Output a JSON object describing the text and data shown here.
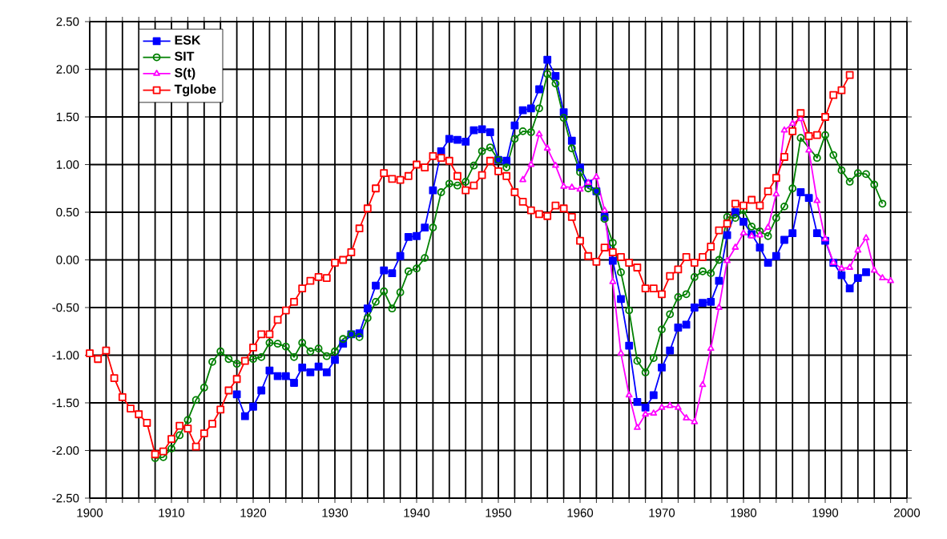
{
  "chart_data": {
    "type": "line",
    "xlim": [
      1900,
      2000
    ],
    "xticks": [
      1900,
      {
        "value": 1902,
        "label": null
      },
      {
        "value": 1904,
        "label": null
      },
      {
        "value": 1906,
        "label": null
      },
      {
        "value": 1908,
        "label": null
      },
      1910,
      {
        "value": 1912,
        "label": null
      },
      {
        "value": 1914,
        "label": null
      },
      {
        "value": 1916,
        "label": null
      },
      {
        "value": 1918,
        "label": null
      },
      1920,
      {
        "value": 1922,
        "label": null
      },
      {
        "value": 1924,
        "label": null
      },
      {
        "value": 1926,
        "label": null
      },
      {
        "value": 1928,
        "label": null
      },
      1930,
      {
        "value": 1932,
        "label": null
      },
      {
        "value": 1934,
        "label": null
      },
      {
        "value": 1936,
        "label": null
      },
      {
        "value": 1938,
        "label": null
      },
      1940,
      {
        "value": 1942,
        "label": null
      },
      {
        "value": 1944,
        "label": null
      },
      {
        "value": 1946,
        "label": null
      },
      {
        "value": 1948,
        "label": null
      },
      1950,
      {
        "value": 1952,
        "label": null
      },
      {
        "value": 1954,
        "label": null
      },
      {
        "value": 1956,
        "label": null
      },
      {
        "value": 1958,
        "label": null
      },
      1960,
      {
        "value": 1962,
        "label": null
      },
      {
        "value": 1964,
        "label": null
      },
      {
        "value": 1966,
        "label": null
      },
      {
        "value": 1968,
        "label": null
      },
      1970,
      {
        "value": 1972,
        "label": null
      },
      {
        "value": 1974,
        "label": null
      },
      {
        "value": 1976,
        "label": null
      },
      {
        "value": 1978,
        "label": null
      },
      1980,
      {
        "value": 1982,
        "label": null
      },
      {
        "value": 1984,
        "label": null
      },
      {
        "value": 1986,
        "label": null
      },
      {
        "value": 1988,
        "label": null
      },
      1990,
      {
        "value": 1992,
        "label": null
      },
      {
        "value": 1994,
        "label": null
      },
      {
        "value": 1996,
        "label": null
      },
      {
        "value": 1998,
        "label": null
      },
      2000
    ],
    "ylim": [
      -2.5,
      2.5
    ],
    "yticks": [
      {
        "value": -2.5,
        "label": "-2.50"
      },
      {
        "value": -2.0,
        "label": "-2.00"
      },
      {
        "value": -1.5,
        "label": "-1.50"
      },
      {
        "value": -1.0,
        "label": "-1.00"
      },
      {
        "value": -0.5,
        "label": "-0.50"
      },
      {
        "value": 0,
        "label": "0.00"
      },
      {
        "value": 0.5,
        "label": "0.50"
      },
      {
        "value": 1.0,
        "label": "1.00"
      },
      {
        "value": 1.5,
        "label": "1.50"
      },
      {
        "value": 2.0,
        "label": "2.00"
      },
      {
        "value": 2.5,
        "label": "2.50"
      }
    ],
    "grid": true,
    "legend": "top left",
    "line_style": "solid",
    "series": [
      {
        "name": "ESK",
        "color": "#0000ff",
        "marker": "square",
        "x": [
          1918,
          1919,
          1920,
          1921,
          1922,
          1923,
          1924,
          1925,
          1926,
          1927,
          1928,
          1929,
          1930,
          1931,
          1932,
          1933,
          1934,
          1935,
          1936,
          1937,
          1938,
          1939,
          1940,
          1941,
          1942,
          1943,
          1944,
          1945,
          1946,
          1947,
          1948,
          1949,
          1950,
          1951,
          1952,
          1953,
          1954,
          1955,
          1956,
          1957,
          1958,
          1959,
          1960,
          1961,
          1962,
          1963,
          1964,
          1965,
          1966,
          1967,
          1968,
          1969,
          1970,
          1971,
          1972,
          1973,
          1974,
          1975,
          1976,
          1977,
          1978,
          1979,
          1980,
          1981,
          1982,
          1983,
          1984,
          1985,
          1986,
          1987,
          1988,
          1989,
          1990,
          1991,
          1992,
          1993,
          1994,
          1995
        ],
        "values": [
          -1.41,
          -1.64,
          -1.54,
          -1.37,
          -1.16,
          -1.22,
          -1.22,
          -1.29,
          -1.13,
          -1.18,
          -1.12,
          -1.18,
          -1.05,
          -0.88,
          -0.78,
          -0.77,
          -0.51,
          -0.27,
          -0.11,
          -0.14,
          0.04,
          0.24,
          0.25,
          0.34,
          0.73,
          1.14,
          1.27,
          1.26,
          1.24,
          1.36,
          1.37,
          1.34,
          1.05,
          1.04,
          1.41,
          1.57,
          1.59,
          1.79,
          2.1,
          1.93,
          1.55,
          1.25,
          0.97,
          0.8,
          0.72,
          0.45,
          -0.01,
          -0.41,
          -0.9,
          -1.49,
          -1.55,
          -1.42,
          -1.13,
          -0.95,
          -0.71,
          -0.68,
          -0.5,
          -0.45,
          -0.44,
          -0.22,
          0.26,
          0.5,
          0.4,
          0.27,
          0.13,
          -0.03,
          0.04,
          0.21,
          0.28,
          0.71,
          0.65,
          0.28,
          0.2,
          -0.03,
          -0.16,
          -0.3,
          -0.19,
          -0.13
        ]
      },
      {
        "name": "SIT",
        "color": "#008000",
        "marker": "circle",
        "x": [
          1908,
          1909,
          1910,
          1911,
          1912,
          1913,
          1914,
          1915,
          1916,
          1917,
          1918,
          1919,
          1920,
          1921,
          1922,
          1923,
          1924,
          1925,
          1926,
          1927,
          1928,
          1929,
          1930,
          1931,
          1932,
          1933,
          1934,
          1935,
          1936,
          1937,
          1938,
          1939,
          1940,
          1941,
          1942,
          1943,
          1944,
          1945,
          1946,
          1947,
          1948,
          1949,
          1950,
          1951,
          1952,
          1953,
          1954,
          1955,
          1956,
          1957,
          1958,
          1959,
          1960,
          1961,
          1962,
          1963,
          1964,
          1965,
          1966,
          1967,
          1968,
          1969,
          1970,
          1971,
          1972,
          1973,
          1974,
          1975,
          1976,
          1977,
          1978,
          1979,
          1980,
          1981,
          1982,
          1983,
          1984,
          1985,
          1986,
          1987,
          1988,
          1989,
          1990,
          1991,
          1992,
          1993,
          1994,
          1995,
          1996,
          1997
        ],
        "values": [
          -2.08,
          -2.07,
          -1.98,
          -1.84,
          -1.68,
          -1.47,
          -1.34,
          -1.07,
          -0.96,
          -1.04,
          -1.09,
          null,
          -1.04,
          -1.02,
          -0.87,
          -0.88,
          -0.91,
          -1.02,
          -0.87,
          -0.96,
          -0.93,
          -1.01,
          -0.96,
          -0.83,
          -0.78,
          -0.81,
          -0.61,
          -0.44,
          -0.33,
          -0.51,
          -0.34,
          -0.12,
          -0.09,
          0.02,
          0.34,
          0.71,
          0.8,
          0.78,
          0.82,
          0.99,
          1.14,
          1.18,
          1.05,
          0.97,
          1.27,
          1.35,
          1.34,
          1.59,
          1.95,
          1.85,
          1.49,
          1.17,
          0.92,
          0.75,
          0.72,
          0.43,
          0.18,
          -0.13,
          -0.53,
          -1.06,
          -1.18,
          -1.03,
          -0.73,
          -0.57,
          -0.39,
          -0.36,
          -0.18,
          -0.12,
          -0.14,
          0.0,
          0.45,
          0.44,
          0.52,
          0.35,
          0.3,
          0.25,
          0.44,
          0.56,
          0.75,
          1.28,
          null,
          1.07,
          1.31,
          1.1,
          0.94,
          0.82,
          0.91,
          0.9,
          0.79,
          0.59
        ]
      },
      {
        "name": "S(t)",
        "color": "#ff00ff",
        "marker": "triangle",
        "x": [
          1953,
          1954,
          1955,
          1956,
          1957,
          1958,
          1959,
          1960,
          1961,
          1962,
          1963,
          1964,
          1965,
          1966,
          1967,
          1968,
          1969,
          1970,
          1971,
          1972,
          1973,
          1974,
          1975,
          1976,
          1977,
          1978,
          1979,
          1980,
          1981,
          1982,
          1983,
          1984,
          1985,
          1986,
          1987,
          1988,
          1989,
          1990,
          1991,
          1992,
          1993,
          1994,
          1995,
          1996,
          1997,
          1998
        ],
        "values": [
          0.84,
          1.0,
          1.32,
          1.17,
          0.99,
          0.77,
          0.76,
          0.74,
          0.81,
          0.87,
          0.52,
          -0.23,
          -0.98,
          -1.42,
          -1.76,
          -1.62,
          -1.61,
          -1.55,
          -1.53,
          -1.55,
          -1.66,
          -1.7,
          -1.31,
          -0.93,
          -0.5,
          -0.01,
          0.13,
          0.28,
          0.25,
          0.26,
          0.34,
          0.69,
          1.36,
          1.43,
          1.48,
          1.15,
          0.62,
          0.22,
          -0.03,
          -0.09,
          -0.08,
          0.1,
          0.23,
          -0.11,
          -0.19,
          -0.22
        ]
      },
      {
        "name": "Tglobe",
        "color": "#ff0000",
        "marker": "square",
        "x": [
          1900,
          1901,
          1902,
          1903,
          1904,
          1905,
          1906,
          1907,
          1908,
          1909,
          1910,
          1911,
          1912,
          1913,
          1914,
          1915,
          1916,
          1917,
          1918,
          1919,
          1920,
          1921,
          1922,
          1923,
          1924,
          1925,
          1926,
          1927,
          1928,
          1929,
          1930,
          1931,
          1932,
          1933,
          1934,
          1935,
          1936,
          1937,
          1938,
          1939,
          1940,
          1941,
          1942,
          1943,
          1944,
          1945,
          1946,
          1947,
          1948,
          1949,
          1950,
          1951,
          1952,
          1953,
          1954,
          1955,
          1956,
          1957,
          1958,
          1959,
          1960,
          1961,
          1962,
          1963,
          1964,
          1965,
          1966,
          1967,
          1968,
          1969,
          1970,
          1971,
          1972,
          1973,
          1974,
          1975,
          1976,
          1977,
          1978,
          1979,
          1980,
          1981,
          1982,
          1983,
          1984,
          1985,
          1986,
          1987,
          1988,
          1989,
          1990,
          1991,
          1992,
          1993
        ],
        "values": [
          -0.98,
          -1.04,
          -0.95,
          -1.24,
          -1.44,
          -1.56,
          -1.62,
          -1.71,
          -2.04,
          -2.01,
          -1.88,
          -1.74,
          -1.77,
          -1.96,
          -1.82,
          -1.72,
          -1.57,
          -1.37,
          -1.25,
          -1.06,
          -0.92,
          -0.78,
          -0.78,
          -0.63,
          -0.53,
          -0.44,
          -0.3,
          -0.22,
          -0.18,
          -0.19,
          -0.03,
          0.0,
          0.08,
          0.33,
          0.54,
          0.75,
          0.91,
          0.85,
          0.84,
          0.88,
          1.0,
          0.97,
          1.09,
          1.07,
          1.04,
          0.88,
          0.73,
          0.78,
          0.89,
          1.04,
          0.93,
          0.88,
          0.71,
          0.61,
          0.52,
          0.48,
          0.46,
          0.57,
          0.54,
          0.45,
          0.2,
          0.04,
          -0.02,
          0.13,
          0.08,
          0.03,
          -0.03,
          -0.08,
          -0.3,
          -0.3,
          -0.36,
          -0.17,
          -0.1,
          0.03,
          -0.03,
          0.03,
          0.14,
          0.31,
          0.38,
          0.59,
          0.57,
          0.63,
          0.57,
          0.72,
          0.86,
          1.08,
          1.35,
          1.54,
          1.3,
          1.31,
          1.5,
          1.73,
          1.78,
          1.94
        ]
      }
    ]
  }
}
